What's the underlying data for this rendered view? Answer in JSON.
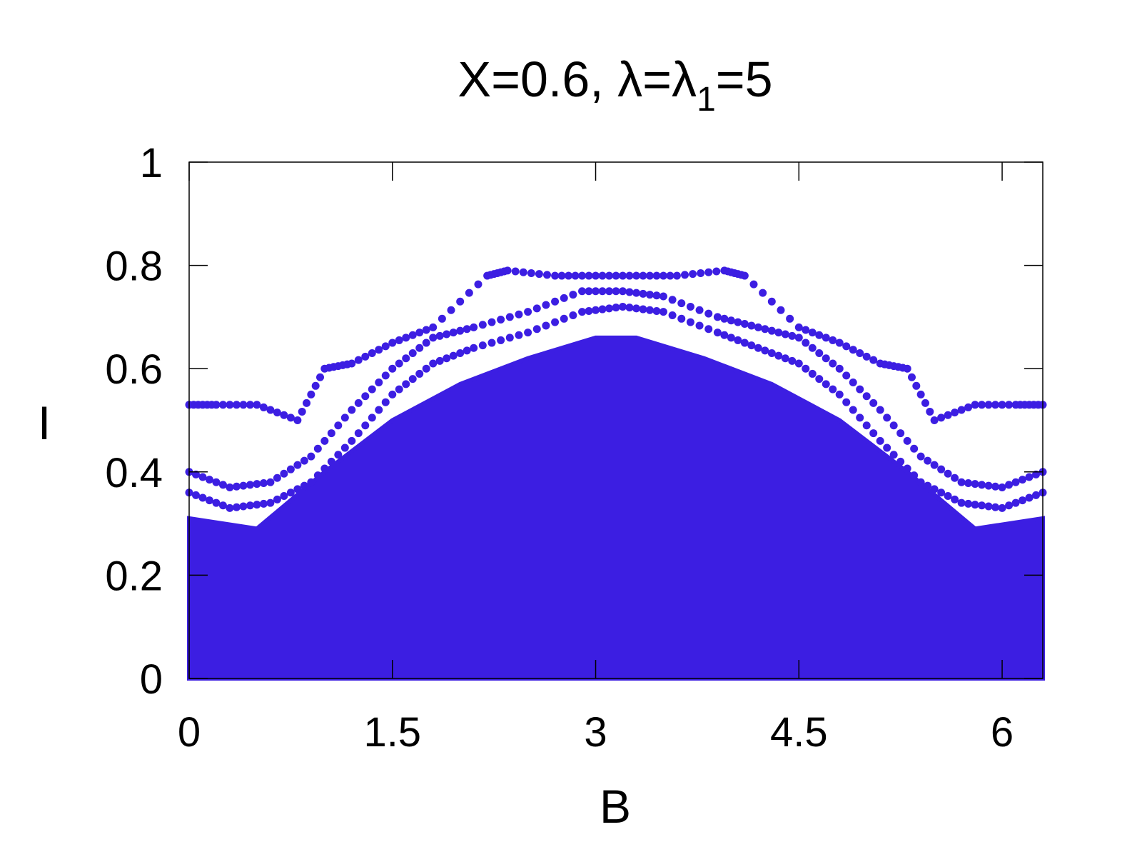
{
  "chart_data": {
    "type": "scatter",
    "title_parts": {
      "main": "X=0.6, λ=λ",
      "subscript": "1",
      "tail": "=5"
    },
    "xlabel": "B",
    "ylabel": "I",
    "xlim": [
      0,
      6.3
    ],
    "ylim": [
      0,
      1
    ],
    "xticks": [
      0,
      1.5,
      3,
      4.5,
      6
    ],
    "xtick_labels": [
      "0",
      "1.5",
      "3",
      "4.5",
      "6"
    ],
    "yticks": [
      0,
      0.2,
      0.4,
      0.6,
      0.8,
      1
    ],
    "ytick_labels": [
      "0",
      "0.2",
      "0.4",
      "0.6",
      "0.8",
      "1"
    ],
    "grid": false,
    "marker_color": "#3c1ee2",
    "series": [
      {
        "region": "dense-filled",
        "upper_envelope": [
          [
            0,
            0.31
          ],
          [
            0.5,
            0.29
          ],
          [
            1.0,
            0.4
          ],
          [
            1.5,
            0.5
          ],
          [
            2.0,
            0.57
          ],
          [
            2.5,
            0.62
          ],
          [
            3.0,
            0.66
          ],
          [
            3.3,
            0.66
          ],
          [
            3.8,
            0.62
          ],
          [
            4.3,
            0.57
          ],
          [
            4.8,
            0.5
          ],
          [
            5.3,
            0.4
          ],
          [
            5.8,
            0.29
          ],
          [
            6.3,
            0.31
          ]
        ]
      },
      {
        "region": "outer-band-1",
        "points": [
          [
            0,
            0.53
          ],
          [
            0.2,
            0.53
          ],
          [
            0.5,
            0.53
          ],
          [
            0.8,
            0.5
          ],
          [
            1.0,
            0.6
          ],
          [
            1.2,
            0.61
          ],
          [
            1.5,
            0.65
          ],
          [
            1.8,
            0.68
          ],
          [
            2.2,
            0.78
          ],
          [
            2.35,
            0.79
          ],
          [
            2.7,
            0.78
          ],
          [
            3.0,
            0.78
          ],
          [
            3.3,
            0.78
          ],
          [
            3.6,
            0.78
          ],
          [
            3.95,
            0.79
          ],
          [
            4.1,
            0.78
          ],
          [
            4.5,
            0.68
          ],
          [
            4.8,
            0.65
          ],
          [
            5.1,
            0.61
          ],
          [
            5.3,
            0.6
          ],
          [
            5.5,
            0.5
          ],
          [
            5.8,
            0.53
          ],
          [
            6.1,
            0.53
          ],
          [
            6.3,
            0.53
          ]
        ]
      },
      {
        "region": "outer-band-2",
        "points": [
          [
            0,
            0.4
          ],
          [
            0.3,
            0.37
          ],
          [
            0.6,
            0.38
          ],
          [
            0.9,
            0.43
          ],
          [
            1.2,
            0.52
          ],
          [
            1.5,
            0.6
          ],
          [
            1.8,
            0.66
          ],
          [
            2.1,
            0.68
          ],
          [
            2.5,
            0.71
          ],
          [
            2.9,
            0.75
          ],
          [
            3.2,
            0.75
          ],
          [
            3.5,
            0.74
          ],
          [
            3.9,
            0.7
          ],
          [
            4.2,
            0.68
          ],
          [
            4.5,
            0.66
          ],
          [
            4.8,
            0.6
          ],
          [
            5.1,
            0.52
          ],
          [
            5.4,
            0.43
          ],
          [
            5.7,
            0.38
          ],
          [
            6.0,
            0.37
          ],
          [
            6.3,
            0.4
          ]
        ]
      },
      {
        "region": "outer-band-3",
        "points": [
          [
            0,
            0.36
          ],
          [
            0.3,
            0.33
          ],
          [
            0.6,
            0.34
          ],
          [
            0.9,
            0.38
          ],
          [
            1.2,
            0.46
          ],
          [
            1.5,
            0.55
          ],
          [
            1.8,
            0.61
          ],
          [
            2.1,
            0.64
          ],
          [
            2.5,
            0.67
          ],
          [
            2.9,
            0.71
          ],
          [
            3.2,
            0.72
          ],
          [
            3.5,
            0.71
          ],
          [
            3.9,
            0.67
          ],
          [
            4.2,
            0.64
          ],
          [
            4.5,
            0.61
          ],
          [
            4.8,
            0.55
          ],
          [
            5.1,
            0.46
          ],
          [
            5.4,
            0.38
          ],
          [
            5.7,
            0.34
          ],
          [
            6.0,
            0.33
          ],
          [
            6.3,
            0.36
          ]
        ]
      }
    ]
  }
}
